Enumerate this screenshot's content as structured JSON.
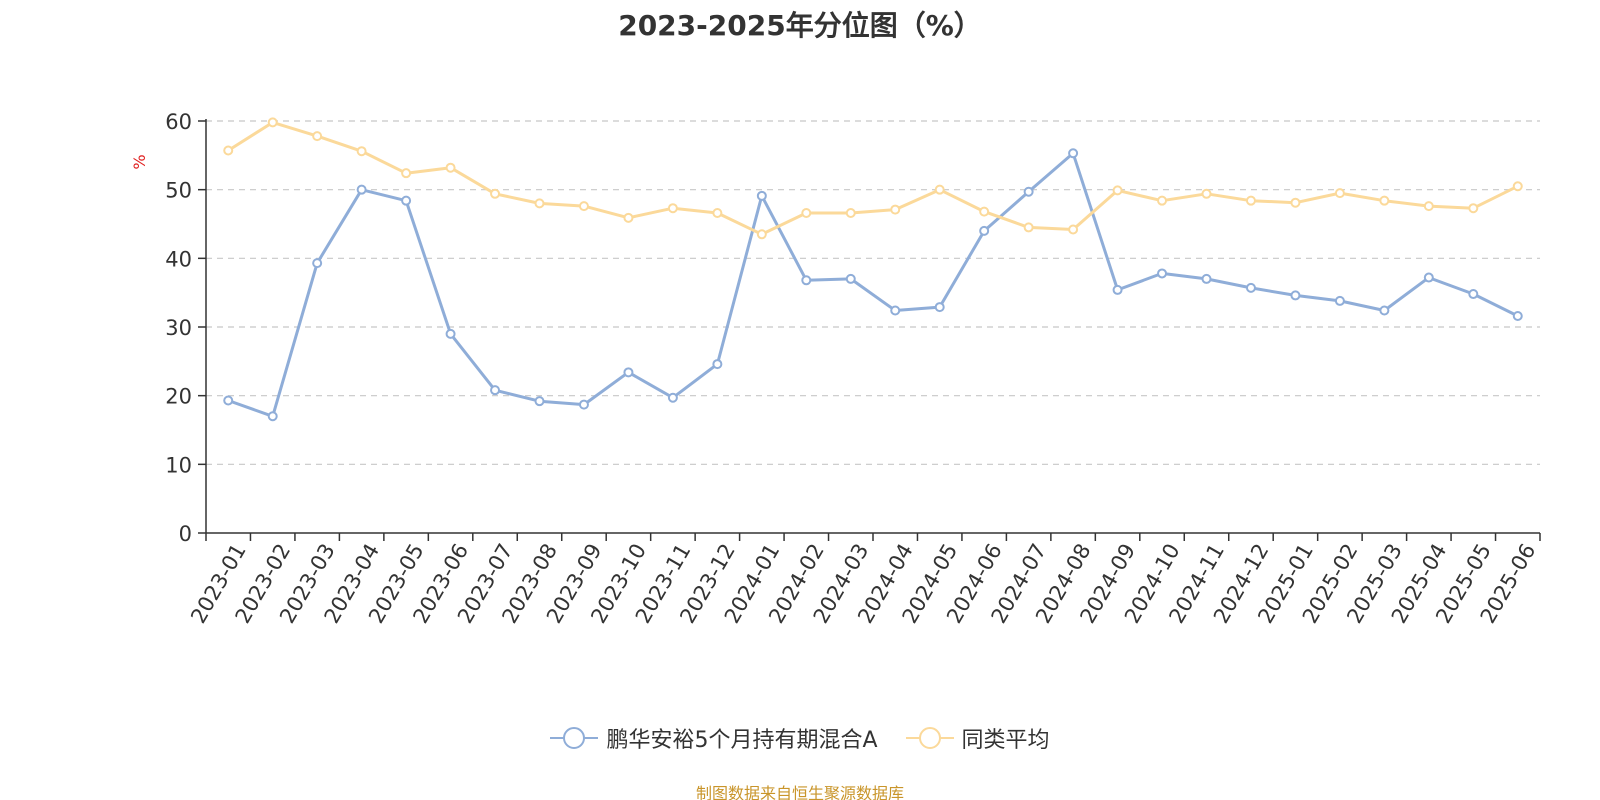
{
  "chart_data": {
    "type": "line",
    "title": "2023-2025年分位图（%）",
    "ylabel": "%",
    "xlabel": "",
    "ylim": [
      0,
      60
    ],
    "yticks": [
      0,
      10,
      20,
      30,
      40,
      50,
      60
    ],
    "grid": true,
    "legend_position": "bottom",
    "categories": [
      "2023-01",
      "2023-02",
      "2023-03",
      "2023-04",
      "2023-05",
      "2023-06",
      "2023-07",
      "2023-08",
      "2023-09",
      "2023-10",
      "2023-11",
      "2023-12",
      "2024-01",
      "2024-02",
      "2024-03",
      "2024-04",
      "2024-05",
      "2024-06",
      "2024-07",
      "2024-08",
      "2024-09",
      "2024-10",
      "2024-11",
      "2024-12",
      "2025-01",
      "2025-02",
      "2025-03",
      "2025-04",
      "2025-05",
      "2025-06"
    ],
    "series": [
      {
        "name": "鹏华安裕5个月持有期混合A",
        "color": "#8fadd8",
        "values": [
          19.3,
          17.0,
          39.3,
          50.0,
          48.4,
          29.0,
          20.8,
          19.2,
          18.7,
          23.4,
          19.7,
          24.6,
          49.1,
          36.8,
          37.0,
          32.4,
          32.9,
          44.0,
          49.7,
          55.3,
          35.4,
          37.8,
          37.0,
          35.7,
          34.6,
          33.8,
          32.4,
          37.2,
          34.8,
          31.6
        ]
      },
      {
        "name": "同类平均",
        "color": "#fbd99a",
        "values": [
          55.7,
          59.8,
          57.8,
          55.6,
          52.4,
          53.2,
          49.4,
          48.0,
          47.6,
          45.9,
          47.3,
          46.6,
          43.5,
          46.6,
          46.6,
          47.1,
          50.0,
          46.8,
          44.5,
          44.2,
          49.9,
          48.4,
          49.4,
          48.4,
          48.1,
          49.5,
          48.4,
          47.6,
          47.3,
          50.5
        ]
      }
    ]
  },
  "footer": {
    "source": "制图数据来自恒生聚源数据库"
  }
}
